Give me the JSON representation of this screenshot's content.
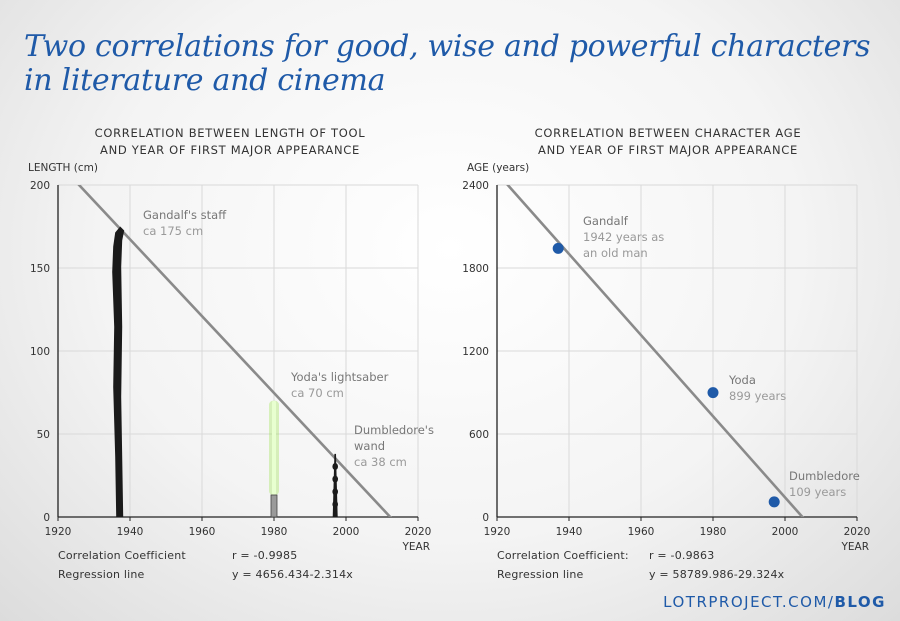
{
  "title_lines": [
    "Two correlations for good, wise and powerful characters",
    "in literature and cinema"
  ],
  "footer": {
    "site": "LOTRPROJECT.COM/",
    "section": "BLOG"
  },
  "colors": {
    "title": "#1f5aa8",
    "regression": "#8a8a8a",
    "points": "#1f5aa8",
    "grid": "#d9d9d9",
    "lightsaber": "#9be24a"
  },
  "chart_data": [
    {
      "type": "line",
      "title_lines": [
        "CORRELATION BETWEEN LENGTH OF TOOL",
        "AND YEAR OF FIRST MAJOR APPEARANCE"
      ],
      "ylabel": "LENGTH (cm)",
      "xlabel": "YEAR",
      "xlim": [
        1920,
        2020
      ],
      "ylim": [
        0,
        200
      ],
      "xticks": [
        "1920",
        "1940",
        "1960",
        "1980",
        "2000",
        "2020"
      ],
      "yticks": [
        "0",
        "50",
        "100",
        "150",
        "200"
      ],
      "grid": true,
      "regression": {
        "intercept": 4656.434,
        "slope": -2.314
      },
      "items": [
        {
          "name": "Gandalf's staff",
          "value_label": "ca 175 cm",
          "x": 1937,
          "y": 175,
          "icon": "staff-icon"
        },
        {
          "name": "Yoda's lightsaber",
          "value_label": "ca 70 cm",
          "x": 1980,
          "y": 70,
          "icon": "lightsaber-icon"
        },
        {
          "name": "Dumbledore's wand",
          "value_label": "ca 38 cm",
          "x": 1997,
          "y": 38,
          "icon": "wand-icon"
        }
      ],
      "stats": {
        "corr_label": "Correlation Coefficient",
        "corr_value": "r = -0.9985",
        "reg_label": "Regression line",
        "reg_value": "y = 4656.434-2.314x"
      }
    },
    {
      "type": "scatter",
      "title_lines": [
        "CORRELATION BETWEEN CHARACTER AGE",
        "AND YEAR OF FIRST MAJOR APPEARANCE"
      ],
      "ylabel": "AGE (years)",
      "xlabel": "YEAR",
      "xlim": [
        1920,
        2020
      ],
      "ylim": [
        0,
        2400
      ],
      "xticks": [
        "1920",
        "1940",
        "1960",
        "1980",
        "2000",
        "2020"
      ],
      "yticks": [
        "0",
        "600",
        "1200",
        "1800",
        "2400"
      ],
      "grid": true,
      "regression": {
        "intercept": 58789.986,
        "slope": -29.324
      },
      "items": [
        {
          "name": "Gandalf",
          "value_label": "1942 years as an old man",
          "x": 1937,
          "y": 1942
        },
        {
          "name": "Yoda",
          "value_label": "899 years",
          "x": 1980,
          "y": 899
        },
        {
          "name": "Dumbledore",
          "value_label": "109 years",
          "x": 1997,
          "y": 109
        }
      ],
      "stats": {
        "corr_label": "Correlation Coefficient:",
        "corr_value": "r = -0.9863",
        "reg_label": "Regression line",
        "reg_value": "y = 58789.986-29.324x"
      }
    }
  ]
}
